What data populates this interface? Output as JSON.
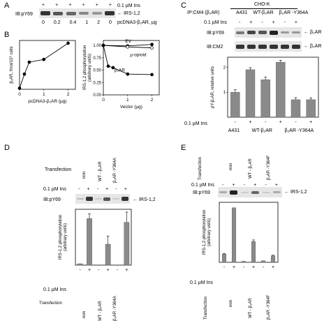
{
  "panelA": {
    "letter": "A",
    "ins_label": "0.1 µM Ins",
    "ins_signs": [
      "+",
      "+",
      "+",
      "+",
      "+",
      "+"
    ],
    "ib_label": "IB:pY69",
    "protein_label": "IRS-1,2",
    "dose_label": "pcDNA3-β₂AR, µg",
    "doses": [
      "0",
      "0.2",
      "0.4",
      "1",
      "2",
      "0"
    ]
  },
  "panelB": {
    "letter": "B",
    "left_chart": {
      "ylabel": "β₂AR, fmol/10⁶ cells",
      "xlabel": "pcDNA3-β₂AR (µg)",
      "xticks": [
        "0",
        "1",
        "2"
      ]
    },
    "right_chart": {
      "ylabel": "IRS-1,2 phosphorylation (arbitrary units)",
      "xlabel": "Vector (µg)",
      "xticks": [
        "0",
        "1",
        "2"
      ],
      "yticks": [
        "0.00",
        "0.25",
        "0.50",
        "0.75",
        "1.00"
      ],
      "labels": [
        "EV",
        "µ-opioid",
        "β₂AR"
      ]
    }
  },
  "panelC": {
    "letter": "C",
    "ip_label": "IP:CM4 (β₂AR)",
    "cho_label": "CHO-K",
    "col_groups": [
      "A431",
      "WT-β₂AR",
      "β₂AR -Y364A"
    ],
    "ins_label": "0.1 µM Ins",
    "ins_signs": [
      "-",
      "+",
      "-",
      "+",
      "-",
      "+"
    ],
    "ib1_label": "IB:pY69",
    "ib2_label": "IB:CM2",
    "band_label": "β₂AR",
    "ylabel": "pY-β₂AR, relative units",
    "yticks": [
      "1",
      "2"
    ],
    "bottom_ins_label": "0.1 µM Ins",
    "bottom_groups": [
      "A431",
      "WT-β₂AR",
      "β₂AR -Y364A"
    ]
  },
  "panelD": {
    "letter": "D",
    "transfection_label": "Transfection",
    "groups": [
      "non",
      "WT - β₂AR",
      "β₂AR -Y364A"
    ],
    "ins_label": "0.1 µM Ins",
    "ins_signs": [
      "-",
      "+",
      "-",
      "+",
      "-",
      "+"
    ],
    "ib_label": "IB:pY69",
    "protein_label": "IRS-1,2",
    "ylabel": "IRS-1,2 phosphorylation (arbitrary units)",
    "bottom_ins_label": "0.1 µM Ins",
    "bottom_transfection_label": "Transfection",
    "bottom_groups": [
      "non",
      "WT - β₂AR",
      "β₂AR -Y364A"
    ]
  },
  "panelE": {
    "letter": "E",
    "transfection_label": "Transfection",
    "groups": [
      "non",
      "WT - β₂AR",
      "β₂AR -Y364F"
    ],
    "ins_label": "0.1 µM Ins",
    "ins_signs": [
      "-",
      "+",
      "-",
      "+",
      "-",
      "+"
    ],
    "ib_label": "IB:pY69",
    "protein_label": "IRS-1,2",
    "ylabel": "IRS-1,2 phosphorylation (arbitrary units)",
    "bottom_ins_label": "0.1 µM Ins",
    "bottom_transfection_label": "Transfection",
    "bottom_groups": [
      "non",
      "WT - β₂AR",
      "β₂AR -Y364F"
    ]
  },
  "chart_data": [
    {
      "type": "line",
      "panel": "B-left",
      "xlabel": "pcDNA3-β₂AR (µg)",
      "ylabel": "β₂AR, fmol/10⁶ cells",
      "xlim": [
        0,
        2.3
      ],
      "ylim": [
        0,
        9
      ],
      "series": [
        {
          "x": [
            0,
            0.2,
            0.4,
            1,
            2
          ],
          "y": [
            0.2,
            2.8,
            5.0,
            5.5,
            8.5
          ]
        }
      ]
    },
    {
      "type": "line",
      "panel": "B-right",
      "xlabel": "Vector (µg)",
      "ylabel": "IRS-1,2 phosphorylation (arbitrary units)",
      "xlim": [
        0,
        2.3
      ],
      "ylim": [
        0,
        1.1
      ],
      "series": [
        {
          "name": "EV",
          "x": [
            0,
            1,
            2
          ],
          "y": [
            1.0,
            0.99,
            1.02
          ]
        },
        {
          "name": "µ-opioid",
          "x": [
            0,
            1,
            2
          ],
          "y": [
            1.0,
            0.97,
            0.95
          ]
        },
        {
          "name": "β₂AR",
          "x": [
            0,
            0.2,
            0.4,
            1,
            2
          ],
          "y": [
            1.0,
            0.58,
            0.55,
            0.42,
            0.41
          ]
        }
      ]
    },
    {
      "type": "bar",
      "panel": "C",
      "ylabel": "pY-β₂AR, relative units",
      "ylim": [
        0,
        2.4
      ],
      "categories": [
        "A431 -",
        "A431 +",
        "WT-β₂AR -",
        "WT-β₂AR +",
        "β₂AR -Y364A -",
        "β₂AR -Y364A +"
      ],
      "values": [
        1.0,
        1.9,
        1.5,
        2.2,
        0.7,
        0.7
      ],
      "errors": [
        0.1,
        0.08,
        0.1,
        0.08,
        0.08,
        0.07
      ]
    },
    {
      "type": "bar",
      "panel": "D",
      "ylabel": "IRS-1,2 phosphorylation (arbitrary units)",
      "ylim": [
        0,
        1.2
      ],
      "categories": [
        "non -",
        "non +",
        "WT - β₂AR -",
        "WT - β₂AR +",
        "β₂AR -Y364A -",
        "β₂AR -Y364A +"
      ],
      "values": [
        0.03,
        1.0,
        0.0,
        0.45,
        0.0,
        0.92
      ],
      "errors": [
        0.0,
        0.1,
        0.0,
        0.17,
        0.0,
        0.22
      ]
    },
    {
      "type": "bar",
      "panel": "E",
      "ylabel": "IRS-1,2 phosphorylation (arbitrary units)",
      "ylim": [
        0,
        1.1
      ],
      "categories": [
        "non -",
        "non +",
        "WT - β₂AR -",
        "WT - β₂AR +",
        "β₂AR -Y364F -",
        "β₂AR -Y364F +"
      ],
      "values": [
        0.15,
        1.0,
        0.02,
        0.38,
        0.03,
        0.12
      ],
      "errors": [
        0.01,
        0.0,
        0.0,
        0.03,
        0.0,
        0.01
      ]
    }
  ]
}
